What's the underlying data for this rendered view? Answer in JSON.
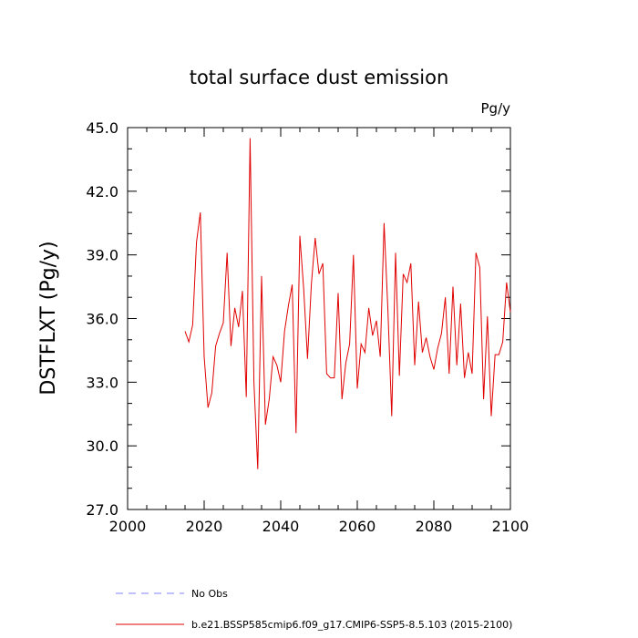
{
  "chart_data": {
    "type": "line",
    "title": "total surface dust emission",
    "units_label": "Pg/y",
    "xlabel": "",
    "ylabel": "DSTFLXT  (Pg/y)",
    "xlim": [
      2000,
      2100
    ],
    "ylim": [
      27.0,
      45.0
    ],
    "x_ticks": [
      2000,
      2020,
      2040,
      2060,
      2080,
      2100
    ],
    "x_tick_labels": [
      "2000",
      "2020",
      "2040",
      "2060",
      "2080",
      "2100"
    ],
    "y_ticks": [
      27.0,
      30.0,
      33.0,
      36.0,
      39.0,
      42.0,
      45.0
    ],
    "y_tick_labels": [
      "27.0",
      "30.0",
      "33.0",
      "36.0",
      "39.0",
      "42.0",
      "45.0"
    ],
    "grid": false,
    "series": [
      {
        "name": "b.e21.BSSP585cmip6.f09_g17.CMIP6-SSP5-8.5.103 (2015-2100)",
        "color": "#e00000",
        "dash": "solid",
        "x": [
          2015,
          2016,
          2017,
          2018,
          2019,
          2020,
          2021,
          2022,
          2023,
          2024,
          2025,
          2026,
          2027,
          2028,
          2029,
          2030,
          2031,
          2032,
          2033,
          2034,
          2035,
          2036,
          2037,
          2038,
          2039,
          2040,
          2041,
          2042,
          2043,
          2044,
          2045,
          2046,
          2047,
          2048,
          2049,
          2050,
          2051,
          2052,
          2053,
          2054,
          2055,
          2056,
          2057,
          2058,
          2059,
          2060,
          2061,
          2062,
          2063,
          2064,
          2065,
          2066,
          2067,
          2068,
          2069,
          2070,
          2071,
          2072,
          2073,
          2074,
          2075,
          2076,
          2077,
          2078,
          2079,
          2080,
          2081,
          2082,
          2083,
          2084,
          2085,
          2086,
          2087,
          2088,
          2089,
          2090,
          2091,
          2092,
          2093,
          2094,
          2095,
          2096,
          2097,
          2098,
          2099,
          2100
        ],
        "values": [
          35.4,
          34.9,
          35.7,
          39.6,
          41.0,
          34.2,
          31.8,
          32.5,
          34.7,
          35.3,
          35.8,
          39.1,
          34.7,
          36.5,
          35.6,
          37.3,
          32.3,
          44.5,
          33.0,
          28.9,
          38.0,
          31.0,
          32.2,
          34.2,
          33.8,
          33.0,
          35.4,
          36.6,
          37.6,
          30.6,
          39.9,
          37.4,
          34.1,
          37.6,
          39.8,
          38.1,
          38.6,
          33.4,
          33.2,
          33.2,
          37.2,
          32.2,
          33.9,
          34.8,
          39.0,
          32.7,
          34.8,
          34.4,
          36.5,
          35.2,
          35.9,
          34.2,
          40.5,
          36.4,
          31.4,
          39.1,
          33.3,
          38.1,
          37.7,
          38.6,
          33.8,
          36.8,
          34.4,
          35.1,
          34.2,
          33.6,
          34.6,
          35.3,
          37.0,
          33.4,
          37.5,
          33.8,
          36.7,
          33.2,
          34.4,
          33.4,
          39.1,
          38.4,
          32.2,
          36.1,
          31.4,
          34.3,
          34.3,
          34.9,
          37.7,
          36.3
        ]
      }
    ],
    "legend": {
      "placement": "bottom-left",
      "entries": [
        {
          "label": "No Obs",
          "color": "#8080ff",
          "dash": "dashed"
        },
        {
          "label": "b.e21.BSSP585cmip6.f09_g17.CMIP6-SSP5-8.5.103 (2015-2100)",
          "color": "#e00000",
          "dash": "solid"
        }
      ]
    }
  }
}
